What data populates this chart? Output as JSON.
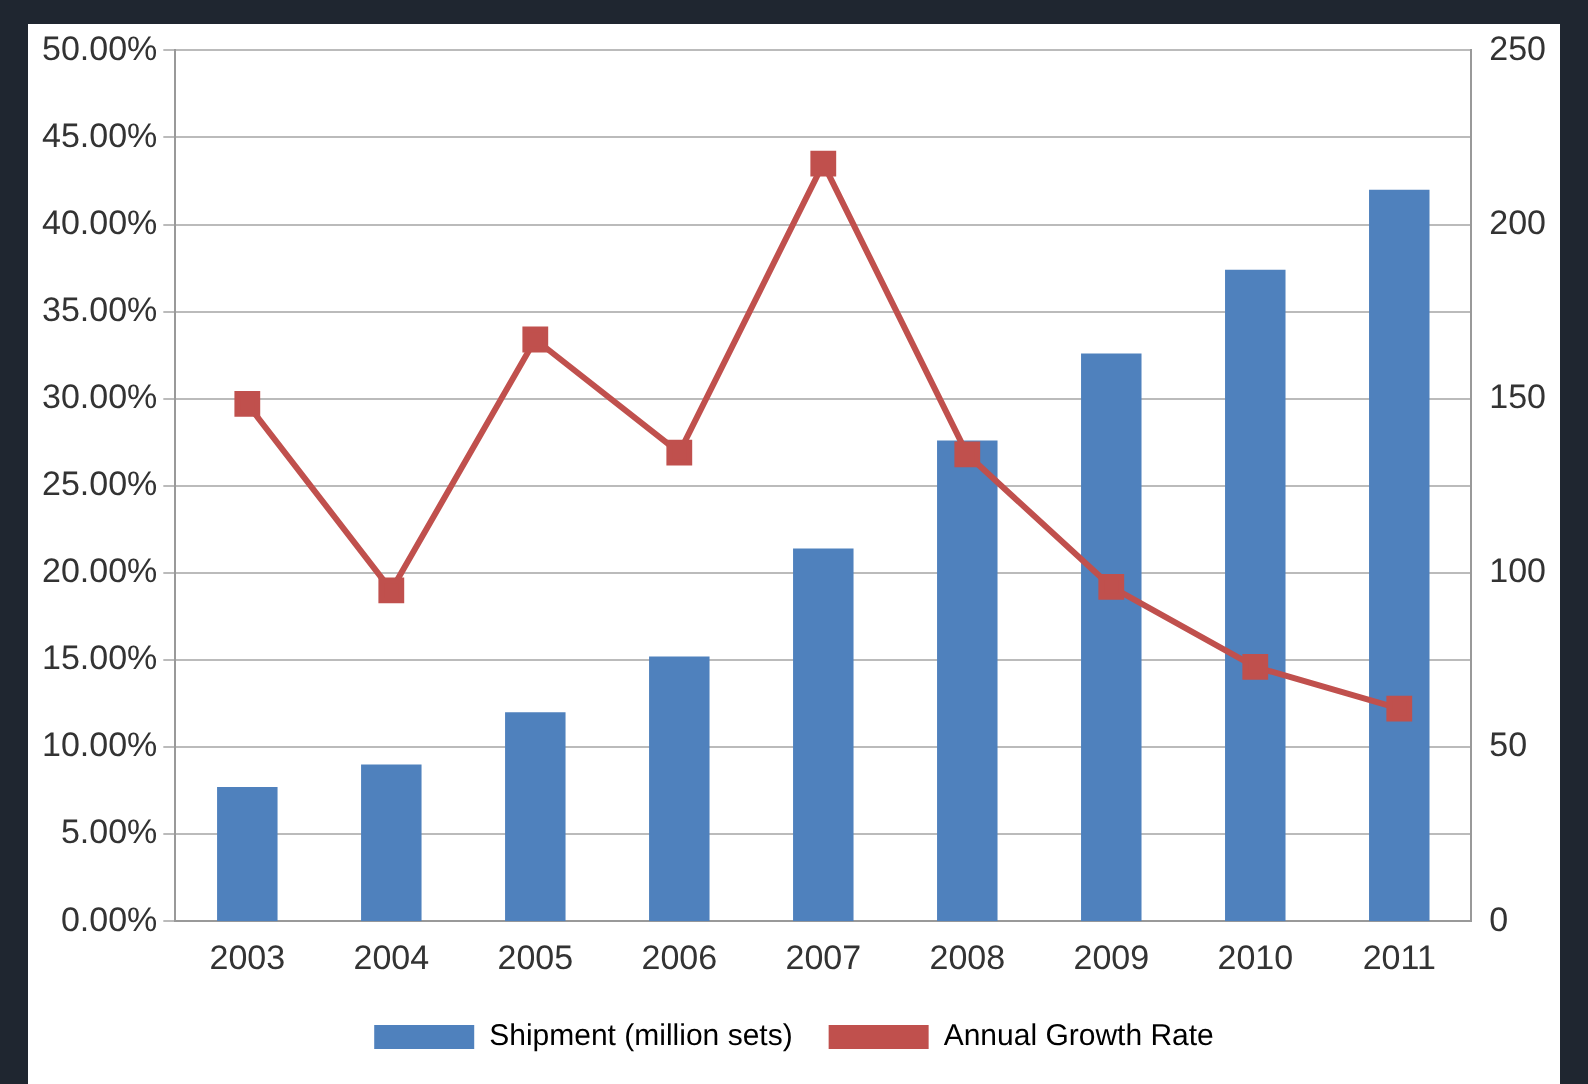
{
  "chart_data": {
    "type": "bar",
    "categories": [
      "2003",
      "2004",
      "2005",
      "2006",
      "2007",
      "2008",
      "2009",
      "2010",
      "2011"
    ],
    "series": [
      {
        "name": "Shipment (million sets)",
        "axis": "y2",
        "color": "#4f81bd",
        "values": [
          38.5,
          45,
          60,
          76,
          107,
          138,
          163,
          187,
          210
        ]
      },
      {
        "name": "Annual Growth Rate",
        "type": "line",
        "axis": "y",
        "color": "#c0504d",
        "marker": "square",
        "values": [
          29.7,
          19.0,
          33.4,
          26.9,
          43.5,
          26.8,
          19.2,
          14.6,
          12.2
        ]
      }
    ],
    "ylim": [
      0,
      50
    ],
    "yticks": [
      {
        "value": 0,
        "label": "0.00%"
      },
      {
        "value": 5,
        "label": "5.00%"
      },
      {
        "value": 10,
        "label": "10.00%"
      },
      {
        "value": 15,
        "label": "15.00%"
      },
      {
        "value": 20,
        "label": "20.00%"
      },
      {
        "value": 25,
        "label": "25.00%"
      },
      {
        "value": 30,
        "label": "30.00%"
      },
      {
        "value": 35,
        "label": "35.00%"
      },
      {
        "value": 40,
        "label": "40.00%"
      },
      {
        "value": 45,
        "label": "45.00%"
      },
      {
        "value": 50,
        "label": "50.00%"
      }
    ],
    "y2lim": [
      0,
      250
    ],
    "y2ticks": [
      0,
      50,
      100,
      150,
      200,
      250
    ],
    "grid": "y",
    "legend": "bottom"
  }
}
